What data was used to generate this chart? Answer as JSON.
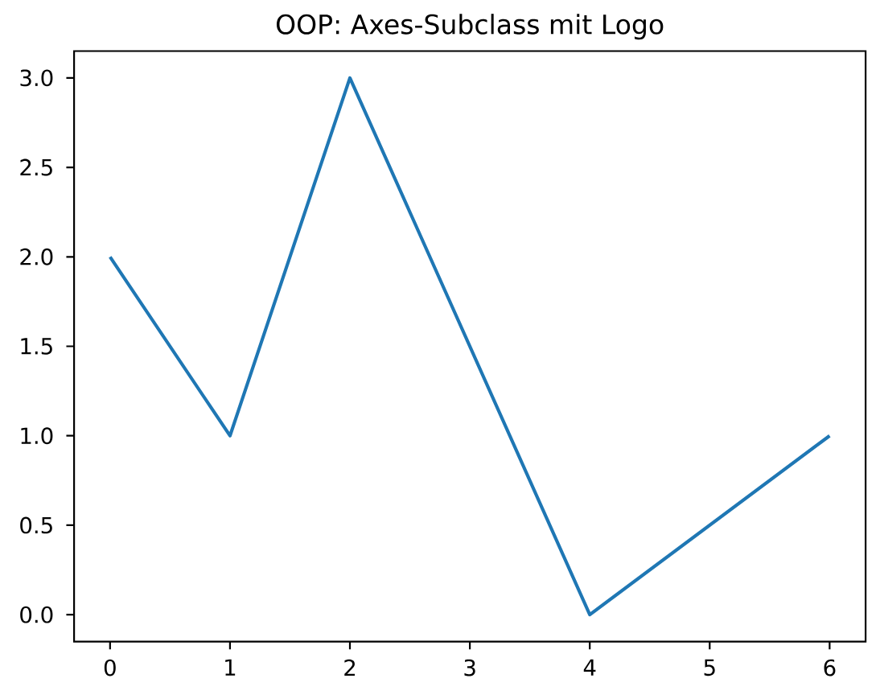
{
  "chart_data": {
    "type": "line",
    "title": "OOP: Axes-Subclass mit Logo",
    "x": [
      0,
      1,
      2,
      4,
      6
    ],
    "series": [
      {
        "color": "#1f77b4",
        "values": [
          2,
          1,
          3,
          0,
          1
        ]
      }
    ],
    "xlim": [
      -0.3,
      6.3
    ],
    "ylim": [
      -0.15,
      3.15
    ],
    "xticks": [
      0,
      1,
      2,
      3,
      4,
      5,
      6
    ],
    "yticks": [
      {
        "value": 0,
        "label": "0.0"
      },
      {
        "value": 0.5,
        "label": "0.5"
      },
      {
        "value": 1,
        "label": "1.0"
      },
      {
        "value": 1.5,
        "label": "1.5"
      },
      {
        "value": 2,
        "label": "2.0"
      },
      {
        "value": 2.5,
        "label": "2.5"
      },
      {
        "value": 3,
        "label": "3.0"
      }
    ],
    "marker": "none",
    "line_style": "solid"
  }
}
